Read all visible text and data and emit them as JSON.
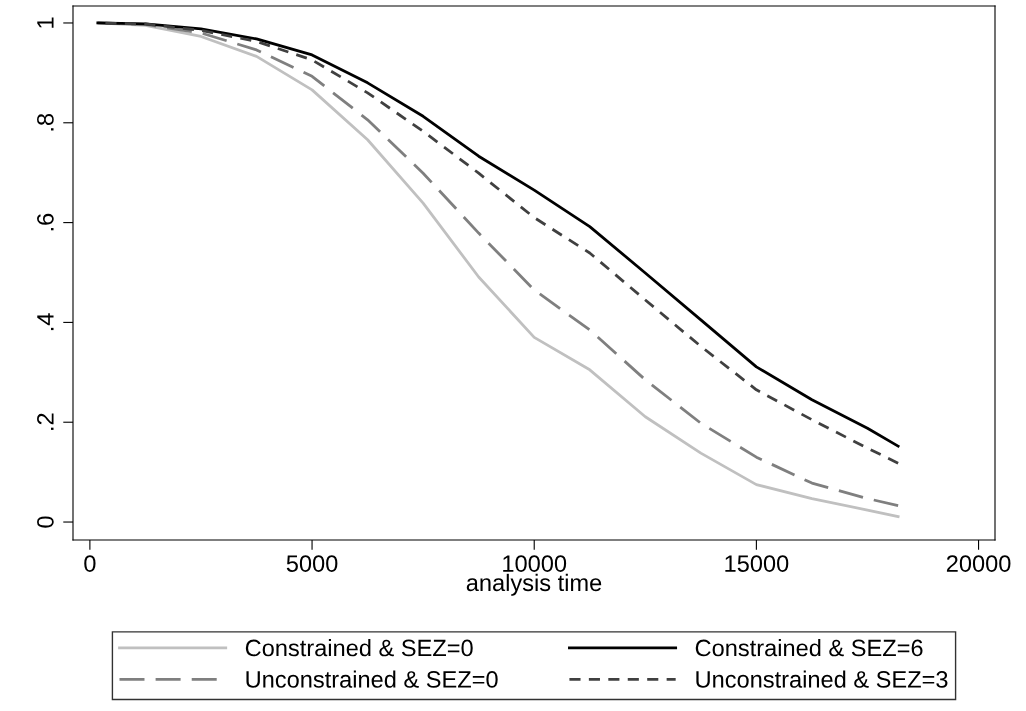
{
  "chart_data": {
    "type": "line",
    "xlabel": "analysis time",
    "xlim": [
      -380,
      20370
    ],
    "xticks": [
      0,
      5000,
      10000,
      15000,
      20000
    ],
    "ylim": [
      -0.036,
      1.034
    ],
    "yticks": [
      0,
      {
        "value": 0.2,
        "label": ".2"
      },
      {
        "value": 0.4,
        "label": ".4"
      },
      {
        "value": 0.6,
        "label": ".6"
      },
      {
        "value": 0.8,
        "label": ".8"
      },
      1
    ],
    "x": [
      180,
      1250,
      2500,
      3750,
      5000,
      6250,
      7500,
      8750,
      10000,
      11250,
      12500,
      13750,
      15000,
      16250,
      17500,
      18190
    ],
    "series": [
      {
        "name": "Constrained & SEZ=0",
        "color": "#c0c0c0",
        "line_style": "solid",
        "values": [
          1,
          0.995,
          0.973,
          0.933,
          0.866,
          0.766,
          0.639,
          0.491,
          0.37,
          0.305,
          0.211,
          0.138,
          0.075,
          0.047,
          0.024,
          0.011
        ]
      },
      {
        "name": "Unconstrained & SEZ=0",
        "color": "#7f7f7f",
        "line_style": "dashed",
        "values": [
          1,
          0.997,
          0.98,
          0.946,
          0.893,
          0.806,
          0.699,
          0.579,
          0.465,
          0.385,
          0.285,
          0.198,
          0.13,
          0.078,
          0.047,
          0.033
        ]
      },
      {
        "name": "Constrained & SEZ=6",
        "color": "#000000",
        "line_style": "solid",
        "values": [
          1,
          0.998,
          0.988,
          0.968,
          0.936,
          0.88,
          0.813,
          0.733,
          0.665,
          0.592,
          0.499,
          0.405,
          0.311,
          0.245,
          0.188,
          0.152
        ]
      },
      {
        "name": "Unconstrained & SEZ=3",
        "color": "#404040",
        "line_style": "dotted",
        "values": [
          1,
          0.998,
          0.985,
          0.963,
          0.926,
          0.86,
          0.783,
          0.699,
          0.61,
          0.539,
          0.445,
          0.352,
          0.265,
          0.205,
          0.148,
          0.118
        ]
      }
    ],
    "legend": "bottom",
    "grid": false
  }
}
